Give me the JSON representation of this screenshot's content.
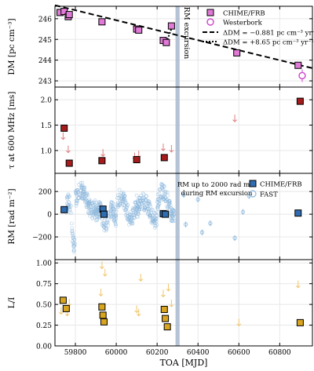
{
  "chart_data": {
    "type": "scatter",
    "xlabel": "TOA [MJD]",
    "xlim": [
      59700,
      60960
    ],
    "xticks": [
      59800,
      60000,
      60200,
      60400,
      60600,
      60800
    ],
    "colors": {
      "chime": "#e07ad6",
      "westerbork": "#cc44cc",
      "rm_chime": "#2f6db1",
      "fast": "#8db8dd",
      "tau_red": "#a61c1c",
      "tau_limit": "#e07f7f",
      "lin": "#d9a520",
      "lin_limit": "#f0c56a",
      "band": "#a7b9ce"
    },
    "excursion_band": [
      60290,
      60310
    ],
    "panels": [
      {
        "id": "dm",
        "ylabel": "DM [pc cm⁻³]",
        "ylim": [
          242.7,
          246.6
        ],
        "yticks": [
          243,
          244,
          245,
          246
        ],
        "band_label": "RM excursion",
        "chime_points": [
          {
            "x": 59725,
            "y": 246.3,
            "err": 0.1
          },
          {
            "x": 59745,
            "y": 246.35,
            "err": 0.1
          },
          {
            "x": 59765,
            "y": 246.1,
            "err": 0.1
          },
          {
            "x": 59770,
            "y": 246.2,
            "err": 0.1
          },
          {
            "x": 59930,
            "y": 245.85,
            "err": 0.1
          },
          {
            "x": 60100,
            "y": 245.5,
            "err": 0.1
          },
          {
            "x": 60110,
            "y": 245.45,
            "err": 0.1
          },
          {
            "x": 60230,
            "y": 244.95,
            "err": 0.15
          },
          {
            "x": 60245,
            "y": 244.85,
            "err": 0.15
          },
          {
            "x": 60270,
            "y": 245.65,
            "err": 0.1
          },
          {
            "x": 60590,
            "y": 244.35,
            "err": 0.1
          },
          {
            "x": 60890,
            "y": 243.75,
            "err": 0.1
          }
        ],
        "westerbork_points": [
          {
            "x": 60910,
            "y": 243.25,
            "err": 0.3
          }
        ],
        "fit_line": {
          "x0": 59700,
          "y0": 246.65,
          "slope_per_day": -0.002412
        },
        "legend": [
          {
            "label": "CHIME/FRB",
            "marker": "square"
          },
          {
            "label": "Westerbork",
            "marker": "circle"
          },
          {
            "label": "ΔDM = −0.881 pc cm⁻³ yr⁻¹",
            "marker": "dash"
          },
          {
            "label": "ΔDM = +8.65 pc cm⁻³ yr⁻¹",
            "marker": "dot"
          }
        ]
      },
      {
        "id": "tau",
        "ylabel": "τ at 600 MHz [ms]",
        "ylim": [
          0.55,
          2.25
        ],
        "yticks": [
          1.0,
          1.5,
          2.0
        ],
        "ytick_labels": [
          "1.0",
          "1.5",
          "2.0"
        ],
        "detections": [
          {
            "x": 59745,
            "y": 1.44,
            "err": 0.05
          },
          {
            "x": 59770,
            "y": 0.75,
            "err": 0.04
          },
          {
            "x": 59930,
            "y": 0.8,
            "err": 0.04
          },
          {
            "x": 60100,
            "y": 0.82,
            "err": 0.04
          },
          {
            "x": 60235,
            "y": 0.86,
            "err": 0.04
          },
          {
            "x": 60900,
            "y": 1.97,
            "err": 0.05
          }
        ],
        "upper_limits": [
          {
            "x": 59740,
            "y": 1.28
          },
          {
            "x": 59765,
            "y": 1.02
          },
          {
            "x": 59935,
            "y": 0.95
          },
          {
            "x": 60090,
            "y": 0.88
          },
          {
            "x": 60110,
            "y": 0.92
          },
          {
            "x": 60230,
            "y": 1.06
          },
          {
            "x": 60270,
            "y": 1.03
          },
          {
            "x": 60580,
            "y": 1.63
          }
        ]
      },
      {
        "id": "rm",
        "ylabel": "RM [rad m⁻²]",
        "ylim": [
          -400,
          360
        ],
        "yticks": [
          -200,
          0,
          200
        ],
        "ytick_labels": [
          "−200",
          "0",
          "200"
        ],
        "annotation": [
          "RM up to 2000 rad m⁻²",
          "during RM excursion"
        ],
        "legend": [
          {
            "label": "CHIME/FRB",
            "marker": "square"
          },
          {
            "label": "FAST",
            "marker": "circle"
          }
        ],
        "chime_points": [
          {
            "x": 59745,
            "y": 40
          },
          {
            "x": 59935,
            "y": 45
          },
          {
            "x": 59940,
            "y": 0
          },
          {
            "x": 60230,
            "y": 5
          },
          {
            "x": 60240,
            "y": 0
          },
          {
            "x": 60890,
            "y": 10
          }
        ],
        "fast_isolated": [
          {
            "x": 60330,
            "y": 170
          },
          {
            "x": 60400,
            "y": 130
          },
          {
            "x": 60340,
            "y": -90
          },
          {
            "x": 60420,
            "y": -160
          },
          {
            "x": 60460,
            "y": -80
          },
          {
            "x": 60580,
            "y": -210
          },
          {
            "x": 60620,
            "y": 20
          },
          {
            "x": 60650,
            "y": 160
          }
        ]
      },
      {
        "id": "lin",
        "ylabel": "L/I",
        "ylim": [
          0.0,
          1.04
        ],
        "yticks": [
          0.0,
          0.25,
          0.5,
          0.75,
          1.0
        ],
        "ytick_labels": [
          "0.00",
          "0.25",
          "0.50",
          "0.75",
          "1.00"
        ],
        "detections": [
          {
            "x": 59740,
            "y": 0.55
          },
          {
            "x": 59755,
            "y": 0.45
          },
          {
            "x": 59930,
            "y": 0.47
          },
          {
            "x": 59935,
            "y": 0.37
          },
          {
            "x": 59940,
            "y": 0.29
          },
          {
            "x": 60235,
            "y": 0.44
          },
          {
            "x": 60240,
            "y": 0.33
          },
          {
            "x": 60250,
            "y": 0.23
          },
          {
            "x": 60900,
            "y": 0.28
          }
        ],
        "upper_limits": [
          {
            "x": 59730,
            "y": 0.42
          },
          {
            "x": 59760,
            "y": 0.4
          },
          {
            "x": 59770,
            "y": 0.52
          },
          {
            "x": 59930,
            "y": 0.97
          },
          {
            "x": 59945,
            "y": 0.88
          },
          {
            "x": 59925,
            "y": 0.64
          },
          {
            "x": 60100,
            "y": 0.44
          },
          {
            "x": 60110,
            "y": 0.4
          },
          {
            "x": 60120,
            "y": 0.82
          },
          {
            "x": 60230,
            "y": 0.63
          },
          {
            "x": 60255,
            "y": 0.7
          },
          {
            "x": 60270,
            "y": 0.51
          },
          {
            "x": 60600,
            "y": 0.28
          },
          {
            "x": 60890,
            "y": 0.74
          }
        ]
      }
    ]
  }
}
